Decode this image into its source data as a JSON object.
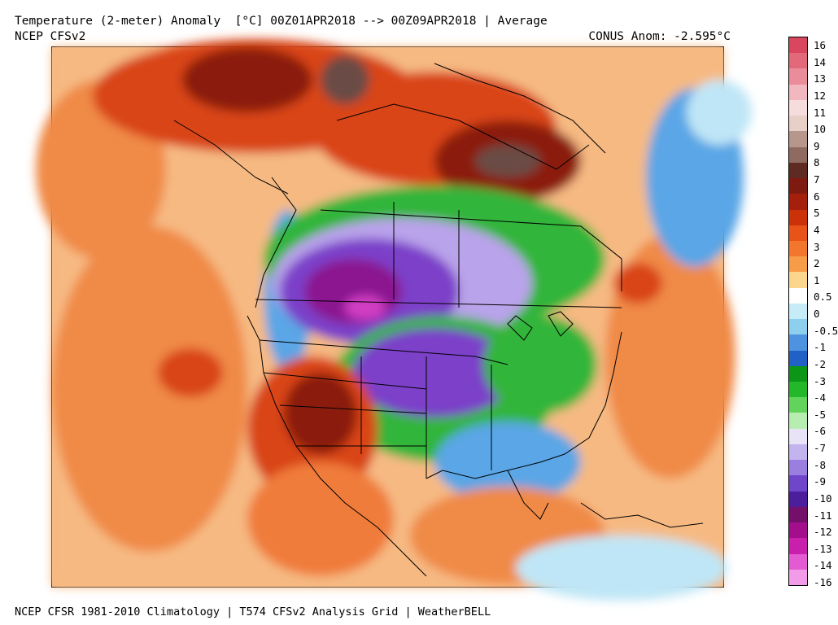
{
  "header": {
    "title": "Temperature (2-meter) Anomaly  [°C] 00Z01APR2018 --> 00Z09APR2018 | Average",
    "model": "NCEP CFSv2",
    "conus_anomaly": "CONUS Anom: -2.595°C"
  },
  "footer": {
    "text": "NCEP CFSR 1981-2010 Climatology | T574 CFSv2 Analysis Grid | WeatherBELL"
  },
  "colorbar": {
    "labels": [
      "16",
      "14",
      "13",
      "12",
      "11",
      "10",
      "9",
      "8",
      "7",
      "6",
      "5",
      "4",
      "3",
      "2",
      "1",
      "0.5",
      "0",
      "-0.5",
      "-1",
      "-2",
      "-3",
      "-4",
      "-5",
      "-6",
      "-7",
      "-8",
      "-9",
      "-10",
      "-11",
      "-12",
      "-13",
      "-14",
      "-16"
    ],
    "colors": [
      "#d8475d",
      "#e2687a",
      "#ea8c99",
      "#f2b8bf",
      "#f7dcdd",
      "#e8cfc8",
      "#b7968c",
      "#8f6a61",
      "#5e2a22",
      "#7e1a10",
      "#a4200c",
      "#cc3209",
      "#e8531a",
      "#f2772c",
      "#f79d48",
      "#fcd68c",
      "#ffffff",
      "#c6ecf8",
      "#8dcfee",
      "#4e93e0",
      "#2160c6",
      "#0c9617",
      "#23b82a",
      "#62d45c",
      "#b7edb1",
      "#e8e3f7",
      "#c3b3ee",
      "#9b7fe0",
      "#6f45c9",
      "#4c1d9d",
      "#74106a",
      "#a20e8b",
      "#c81fad",
      "#e35ad2",
      "#f29be8"
    ]
  },
  "map": {
    "region": "North America",
    "colors": {
      "ocean_warm": "#f6b982",
      "warm": "#f07b3a",
      "hot": "#d94419",
      "very_hot": "#8b1a0d",
      "extreme_hot": "#6b4b44",
      "cool_light": "#bfe6f6",
      "cool": "#5aa6e6",
      "cold_green": "#33b53a",
      "cold_lightgreen": "#8be085",
      "very_cold_lavender": "#b9a3ea",
      "very_cold_purple": "#7b3fc9",
      "extreme_cold": "#8b1690",
      "extreme_cold_magenta": "#d13cc4",
      "border": "#000000"
    }
  }
}
